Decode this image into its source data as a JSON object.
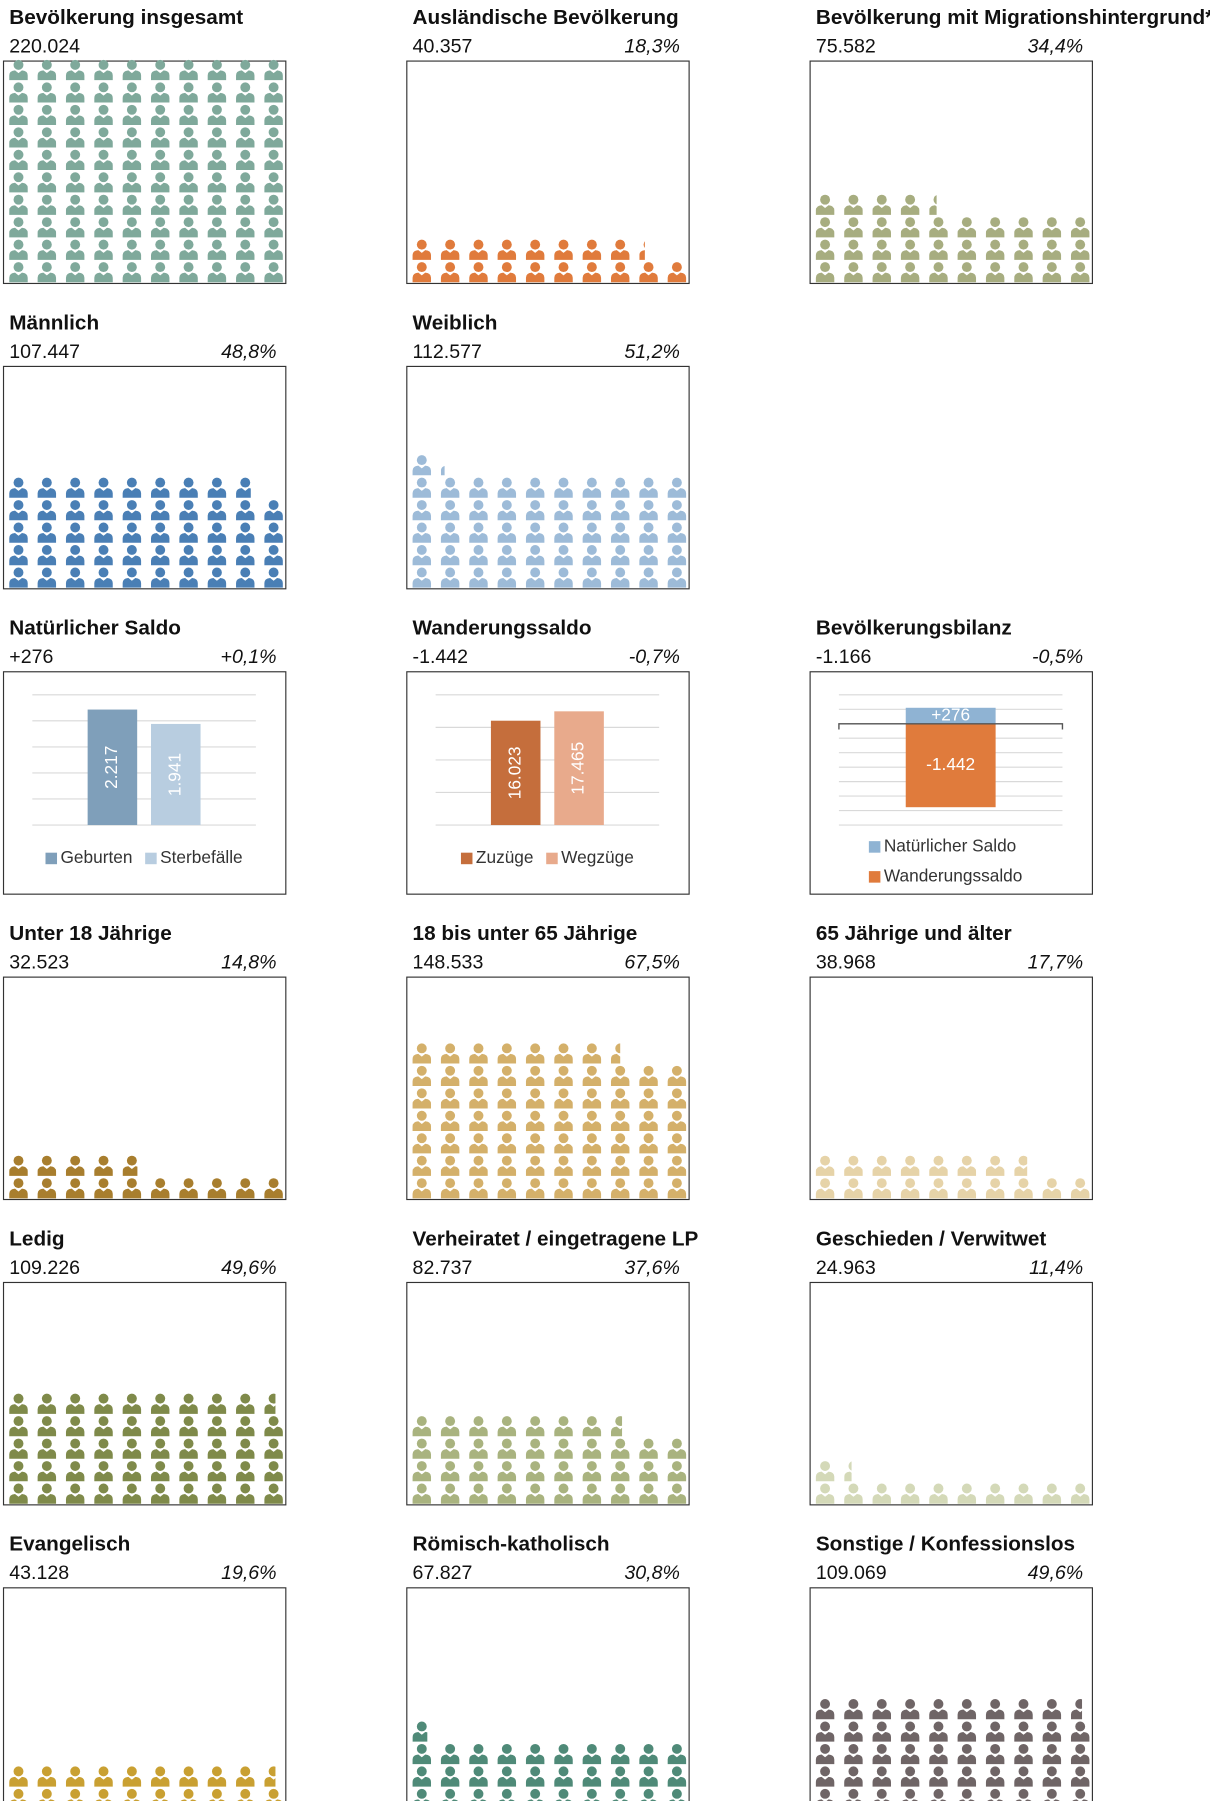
{
  "chart_data": [
    {
      "type": "pictogram",
      "title": "Bevölkerung insgesamt",
      "total": "220.024",
      "color": "#7fa99b"
    },
    {
      "type": "pictogram",
      "title": "Ausländische Bevölkerung",
      "total": "40.357",
      "share": 18.3,
      "share_label": "18,3%",
      "color": "#e07b3c"
    },
    {
      "type": "pictogram",
      "title": "Bevölkerung mit Migrationshintergrund*",
      "total": "75.582",
      "share": 34.4,
      "share_label": "34,4%",
      "color": "#a7ad80"
    },
    {
      "type": "pictogram",
      "title": "Männlich",
      "total": "107.447",
      "share": 48.8,
      "share_label": "48,8%",
      "color": "#4a7fb5"
    },
    {
      "type": "pictogram",
      "title": "Weiblich",
      "total": "112.577",
      "share": 51.2,
      "share_label": "51,2%",
      "color": "#9dbbd8"
    },
    {
      "type": "bar",
      "title": "Natürlicher Saldo",
      "total": "+276",
      "share_label": "+0,1%",
      "categories": [
        "Geburten",
        "Sterbefälle"
      ],
      "values": [
        2217,
        1941
      ],
      "value_labels": [
        "2.217",
        "1.941"
      ],
      "colors": [
        "#7f9fba",
        "#b8cde0"
      ],
      "ylim": [
        0,
        2500
      ],
      "yticks": [
        0,
        500,
        1000,
        1500,
        2000,
        2500
      ],
      "grid": true
    },
    {
      "type": "bar",
      "title": "Wanderungssaldo",
      "total": "-1.442",
      "share_label": "-0,7%",
      "categories": [
        "Zuzüge",
        "Wegzüge"
      ],
      "values": [
        16023,
        17465
      ],
      "value_labels": [
        "16.023",
        "17.465"
      ],
      "colors": [
        "#c56e3c",
        "#e8aa8c"
      ],
      "ylim": [
        0,
        20000
      ],
      "yticks": [
        0,
        5000,
        10000,
        15000,
        20000
      ],
      "grid": true
    },
    {
      "type": "stacked_bar",
      "title": "Bevölkerungsbilanz",
      "total": "-1.166",
      "share_label": "-0,5%",
      "series": [
        {
          "name": "Natürlicher Saldo",
          "color": "#8fb3d3",
          "values": [
            276
          ],
          "value_labels": [
            "+276"
          ]
        },
        {
          "name": "Wanderungssaldo",
          "color": "#e07b3c",
          "values": [
            -1442
          ],
          "value_labels": [
            "-1.442"
          ]
        }
      ],
      "ylim": [
        -1750,
        500
      ],
      "yticks": [
        -1750,
        -1500,
        -1250,
        -1000,
        -750,
        -500,
        -250,
        0,
        250,
        500
      ],
      "grid": true
    },
    {
      "type": "pictogram",
      "title": "Unter 18 Jährige",
      "total": "32.523",
      "share": 14.8,
      "share_label": "14,8%",
      "color": "#a87e2e"
    },
    {
      "type": "pictogram",
      "title": "18 bis unter 65 Jährige",
      "total": "148.533",
      "share": 67.5,
      "share_label": "67,5%",
      "color": "#d4b06a"
    },
    {
      "type": "pictogram",
      "title": "65 Jährige und älter",
      "total": "38.968",
      "share": 17.7,
      "share_label": "17,7%",
      "color": "#e6d3a8"
    },
    {
      "type": "pictogram",
      "title": "Ledig",
      "total": "109.226",
      "share": 49.6,
      "share_label": "49,6%",
      "color": "#7f8a4a"
    },
    {
      "type": "pictogram",
      "title": "Verheiratet / eingetragene LP",
      "total": "82.737",
      "share": 37.6,
      "share_label": "37,6%",
      "color": "#a9b37f"
    },
    {
      "type": "pictogram",
      "title": "Geschieden / Verwitwet",
      "total": "24.963",
      "share": 11.4,
      "share_label": "11,4%",
      "color": "#d4d9b8"
    },
    {
      "type": "pictogram",
      "title": "Evangelisch",
      "total": "43.128",
      "share": 19.6,
      "share_label": "19,6%",
      "color": "#c9a032"
    },
    {
      "type": "pictogram",
      "title": "Römisch-katholisch",
      "total": "67.827",
      "share": 30.8,
      "share_label": "30,8%",
      "color": "#4f8a78"
    },
    {
      "type": "pictogram",
      "title": "Sonstige / Konfessionslos",
      "total": "109.069",
      "share": 49.6,
      "share_label": "49,6%",
      "color": "#6f6566"
    }
  ]
}
